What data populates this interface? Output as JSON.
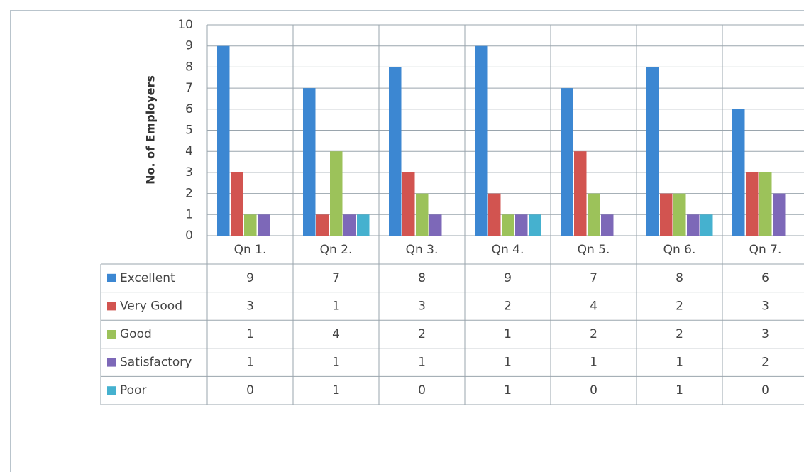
{
  "chart_data": {
    "type": "bar",
    "y_label": "No. of Employers",
    "categories": [
      "Qn 1.",
      "Qn 2.",
      "Qn 3.",
      "Qn 4.",
      "Qn 5.",
      "Qn 6.",
      "Qn 7."
    ],
    "series": [
      {
        "name": "Excellent",
        "color": "#3c87d2",
        "values": [
          9,
          7,
          8,
          9,
          7,
          8,
          6
        ]
      },
      {
        "name": "Very Good",
        "color": "#d25450",
        "values": [
          3,
          1,
          3,
          2,
          4,
          2,
          3
        ]
      },
      {
        "name": "Good",
        "color": "#9cc25a",
        "values": [
          1,
          4,
          2,
          1,
          2,
          2,
          3
        ]
      },
      {
        "name": "Satisfactory",
        "color": "#7d68b8",
        "values": [
          1,
          1,
          1,
          1,
          1,
          1,
          2
        ]
      },
      {
        "name": "Poor",
        "color": "#45b1cf",
        "values": [
          0,
          1,
          0,
          1,
          0,
          1,
          0
        ]
      }
    ],
    "ylim": [
      0,
      10
    ],
    "yticks": [
      0,
      1,
      2,
      3,
      4,
      5,
      6,
      7,
      8,
      9,
      10
    ],
    "grid": true
  }
}
